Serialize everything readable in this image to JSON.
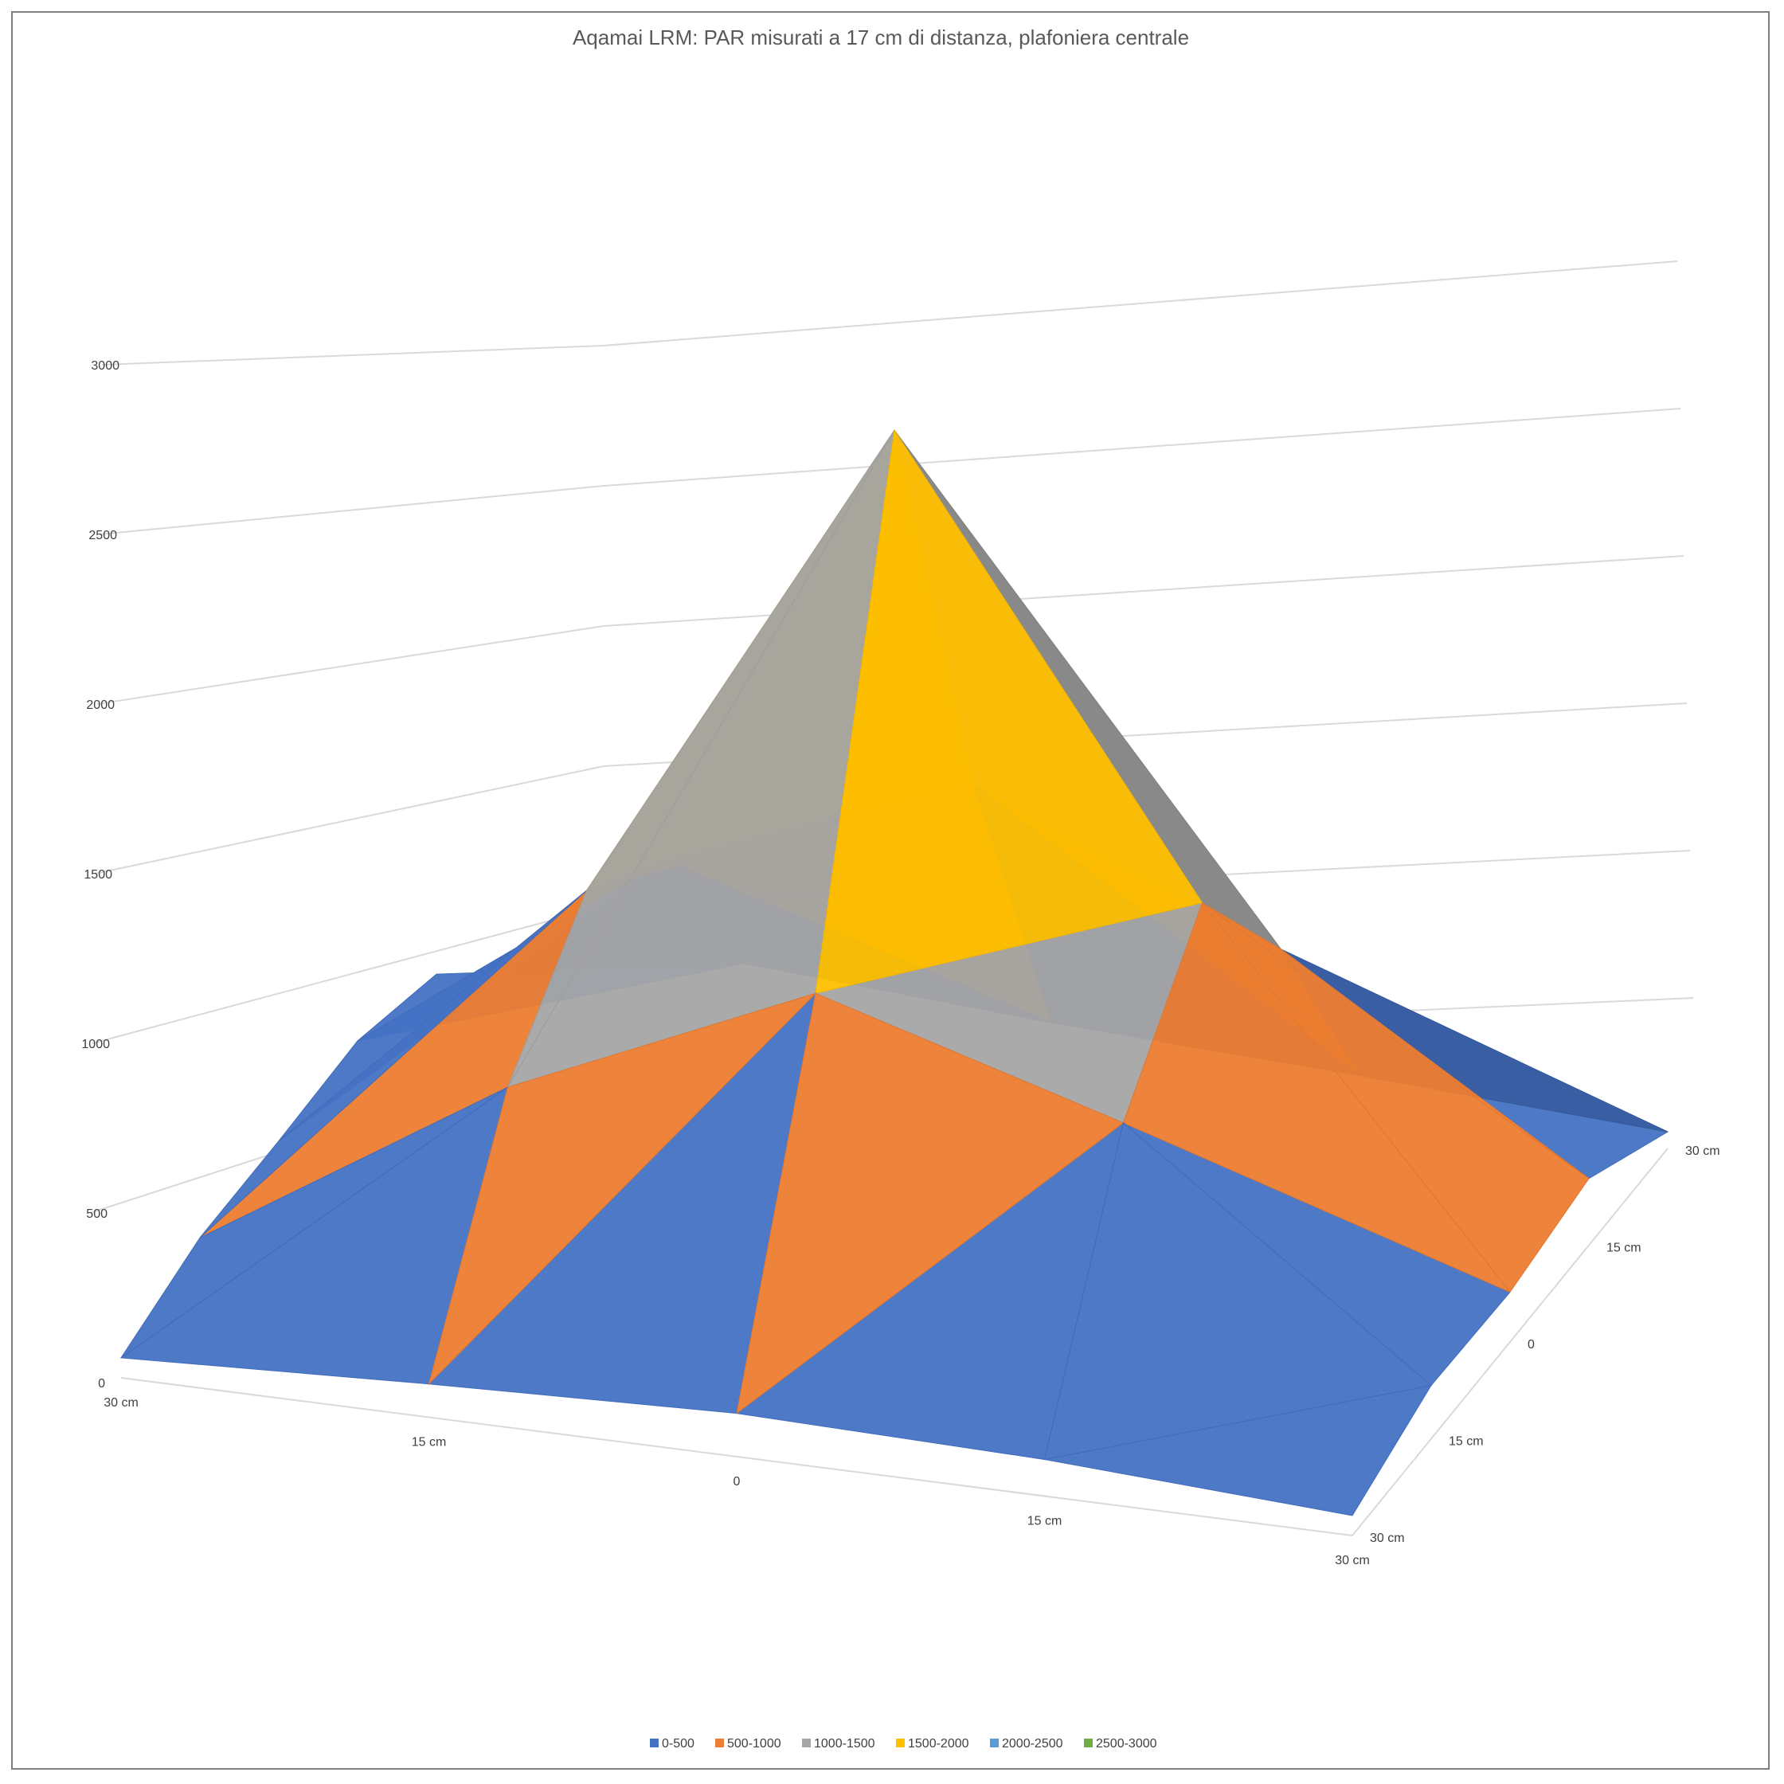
{
  "chart_data": {
    "type": "surface",
    "title": "Aqamai LRM: PAR misurati a 17 cm di distanza, plafoniera centrale",
    "zlim": [
      0,
      3000
    ],
    "z_ticks": [
      "0",
      "500",
      "1000",
      "1500",
      "2000",
      "2500",
      "3000"
    ],
    "x_ticks": [
      "30 cm",
      "15 cm",
      "0",
      "15 cm",
      "30 cm"
    ],
    "y_ticks": [
      "30 cm",
      "15 cm",
      "0",
      "15 cm",
      "30 cm"
    ],
    "values": [
      [
        60,
        100,
        130,
        110,
        60
      ],
      [
        130,
        700,
        1100,
        830,
        160
      ],
      [
        130,
        1000,
        2500,
        1200,
        150
      ],
      [
        140,
        800,
        1150,
        770,
        200
      ],
      [
        50,
        200,
        140,
        100,
        50
      ]
    ],
    "grid": true,
    "legend_position": "bottom",
    "legend": [
      {
        "label": "0-500",
        "color": "#4472c4"
      },
      {
        "label": "500-1000",
        "color": "#ed7d31"
      },
      {
        "label": "1000-1500",
        "color": "#a5a5a5"
      },
      {
        "label": "1500-2000",
        "color": "#ffc000"
      },
      {
        "label": "2000-2500",
        "color": "#5b9bd5"
      },
      {
        "label": "2500-3000",
        "color": "#70ad47"
      }
    ]
  }
}
